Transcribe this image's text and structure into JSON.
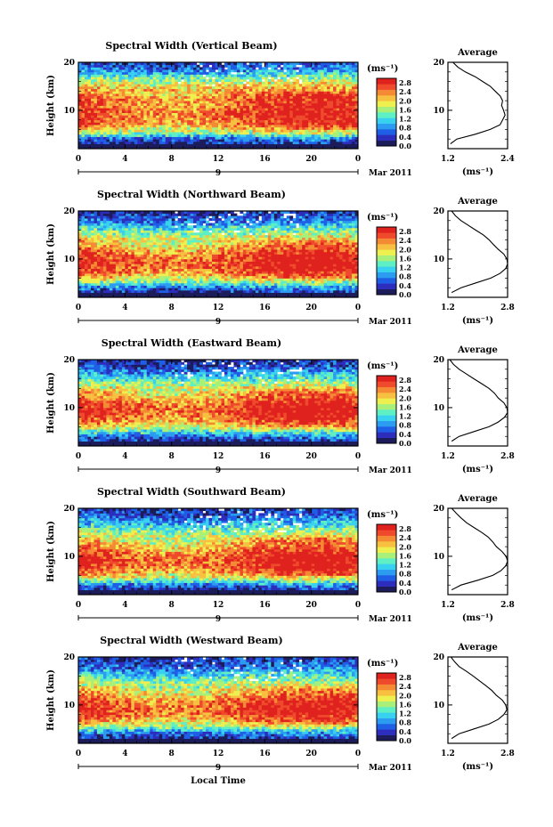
{
  "figure": {
    "common_xlabel": "Local Time",
    "date_label": "Mar 2011",
    "day_label": "9",
    "height_label": "Height (km)",
    "unit_label": "(ms⁻¹)",
    "average_title": "Average"
  },
  "colors": {
    "colormap": [
      "#1c1c5a",
      "#2d2dbd",
      "#1f5fe6",
      "#2b9cf0",
      "#38d1f0",
      "#5ef0c4",
      "#a8f07a",
      "#eef050",
      "#f8c040",
      "#f58a34",
      "#ef4a2c",
      "#e0221e"
    ],
    "axis": "#000000",
    "background": "#ffffff"
  },
  "chart_data": [
    {
      "type": "heatmap",
      "title": "Spectral Width (Vertical Beam)",
      "xlabel": "",
      "ylabel": "Height (km)",
      "xlim": [
        0,
        24
      ],
      "ylim": [
        2,
        20
      ],
      "xticks": [
        "0",
        "4",
        "8",
        "12",
        "16",
        "20",
        "0"
      ],
      "yticks": [
        "10",
        "20"
      ],
      "colorbar": {
        "label": "(ms⁻¹)",
        "ticks": [
          "2.8",
          "2.4",
          "2.0",
          "1.6",
          "1.2",
          "0.8",
          "0.4",
          "0.0"
        ],
        "range": [
          0,
          3.0
        ]
      },
      "profile": {
        "title": "Average",
        "xlabel": "(ms⁻¹)",
        "xlim": [
          1.2,
          2.4
        ],
        "xticks": [
          "1.2",
          "2.4"
        ],
        "yticks": [
          "10",
          "20"
        ],
        "heights": [
          3,
          4,
          5,
          6,
          7,
          8,
          9,
          10,
          11,
          12,
          13,
          14,
          15,
          16,
          17,
          18,
          19,
          20
        ],
        "values": [
          1.25,
          1.38,
          1.75,
          2.05,
          2.25,
          2.3,
          2.35,
          2.32,
          2.28,
          2.3,
          2.25,
          2.15,
          2.05,
          1.9,
          1.75,
          1.55,
          1.4,
          1.3
        ]
      }
    },
    {
      "type": "heatmap",
      "title": "Spectral Width (Northward Beam)",
      "xlabel": "",
      "ylabel": "Height (km)",
      "xlim": [
        0,
        24
      ],
      "ylim": [
        2,
        20
      ],
      "xticks": [
        "0",
        "4",
        "8",
        "12",
        "16",
        "20",
        "0"
      ],
      "yticks": [
        "10",
        "20"
      ],
      "colorbar": {
        "label": "(ms⁻¹)",
        "ticks": [
          "2.8",
          "2.4",
          "2.0",
          "1.6",
          "1.2",
          "0.8",
          "0.4",
          "0.0"
        ],
        "range": [
          0,
          3.0
        ]
      },
      "profile": {
        "title": "Average",
        "xlabel": "(ms⁻¹)",
        "xlim": [
          1.2,
          2.8
        ],
        "xticks": [
          "1.2",
          "2.8"
        ],
        "yticks": [
          "10",
          "20"
        ],
        "heights": [
          3,
          4,
          5,
          6,
          7,
          8,
          9,
          10,
          11,
          12,
          13,
          14,
          15,
          16,
          17,
          18,
          19,
          20
        ],
        "values": [
          1.3,
          1.55,
          1.95,
          2.35,
          2.6,
          2.75,
          2.8,
          2.78,
          2.7,
          2.55,
          2.42,
          2.3,
          2.15,
          1.95,
          1.75,
          1.55,
          1.4,
          1.3
        ]
      }
    },
    {
      "type": "heatmap",
      "title": "Spectral Width (Eastward Beam)",
      "xlabel": "",
      "ylabel": "Height (km)",
      "xlim": [
        0,
        24
      ],
      "ylim": [
        2,
        20
      ],
      "xticks": [
        "0",
        "4",
        "8",
        "12",
        "16",
        "20",
        "0"
      ],
      "yticks": [
        "10",
        "20"
      ],
      "colorbar": {
        "label": "(ms⁻¹)",
        "ticks": [
          "2.8",
          "2.4",
          "2.0",
          "1.6",
          "1.2",
          "0.8",
          "0.4",
          "0.0"
        ],
        "range": [
          0,
          3.0
        ]
      },
      "profile": {
        "title": "Average",
        "xlabel": "(ms⁻¹)",
        "xlim": [
          1.2,
          2.8
        ],
        "xticks": [
          "1.2",
          "2.8"
        ],
        "yticks": [
          "10",
          "20"
        ],
        "heights": [
          3,
          4,
          5,
          6,
          7,
          8,
          9,
          10,
          11,
          12,
          13,
          14,
          15,
          16,
          17,
          18,
          19,
          20
        ],
        "values": [
          1.3,
          1.5,
          1.9,
          2.3,
          2.55,
          2.72,
          2.8,
          2.78,
          2.7,
          2.55,
          2.45,
          2.3,
          2.1,
          1.9,
          1.7,
          1.5,
          1.35,
          1.25
        ]
      }
    },
    {
      "type": "heatmap",
      "title": "Spectral Width (Southward Beam)",
      "xlabel": "",
      "ylabel": "Height (km)",
      "xlim": [
        0,
        24
      ],
      "ylim": [
        2,
        20
      ],
      "xticks": [
        "0",
        "4",
        "8",
        "12",
        "16",
        "20",
        "0"
      ],
      "yticks": [
        "10",
        "20"
      ],
      "colorbar": {
        "label": "(ms⁻¹)",
        "ticks": [
          "2.8",
          "2.4",
          "2.0",
          "1.6",
          "1.2",
          "0.8",
          "0.4",
          "0.0"
        ],
        "range": [
          0,
          3.0
        ]
      },
      "profile": {
        "title": "Average",
        "xlabel": "(ms⁻¹)",
        "xlim": [
          1.2,
          2.8
        ],
        "xticks": [
          "1.2",
          "2.8"
        ],
        "yticks": [
          "10",
          "20"
        ],
        "heights": [
          3,
          4,
          5,
          6,
          7,
          8,
          9,
          10,
          11,
          12,
          13,
          14,
          15,
          16,
          17,
          18,
          19,
          20
        ],
        "values": [
          1.3,
          1.55,
          2.0,
          2.4,
          2.62,
          2.75,
          2.8,
          2.76,
          2.65,
          2.5,
          2.4,
          2.28,
          2.1,
          1.9,
          1.7,
          1.55,
          1.42,
          1.3
        ]
      }
    },
    {
      "type": "heatmap",
      "title": "Spectral Width (Westward Beam)",
      "xlabel": "Local Time",
      "ylabel": "Height (km)",
      "xlim": [
        0,
        24
      ],
      "ylim": [
        2,
        20
      ],
      "xticks": [
        "0",
        "4",
        "8",
        "12",
        "16",
        "20",
        "0"
      ],
      "yticks": [
        "10",
        "20"
      ],
      "colorbar": {
        "label": "(ms⁻¹)",
        "ticks": [
          "2.8",
          "2.4",
          "2.0",
          "1.6",
          "1.2",
          "0.8",
          "0.4",
          "0.0"
        ],
        "range": [
          0,
          3.0
        ]
      },
      "profile": {
        "title": "Average",
        "xlabel": "(ms⁻¹)",
        "xlim": [
          1.2,
          2.8
        ],
        "xticks": [
          "1.2",
          "2.8"
        ],
        "yticks": [
          "10",
          "20"
        ],
        "heights": [
          3,
          4,
          5,
          6,
          7,
          8,
          9,
          10,
          11,
          12,
          13,
          14,
          15,
          16,
          17,
          18,
          19,
          20
        ],
        "values": [
          1.3,
          1.5,
          1.9,
          2.3,
          2.55,
          2.7,
          2.78,
          2.75,
          2.66,
          2.5,
          2.38,
          2.22,
          2.05,
          1.88,
          1.7,
          1.5,
          1.38,
          1.28
        ]
      }
    }
  ]
}
